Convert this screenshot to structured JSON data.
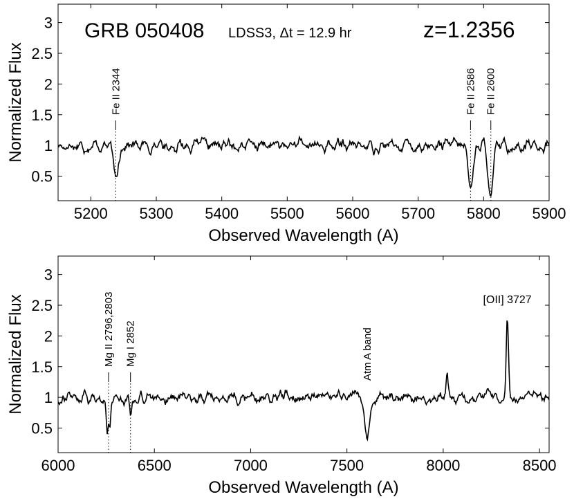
{
  "chart_data": [
    {
      "type": "line",
      "panel": "top",
      "title_main": "GRB 050408",
      "title_sub": "LDSS3,  Δt = 12.9 hr",
      "redshift_label": "z=1.2356",
      "xlabel": "Observed Wavelength  (A)",
      "ylabel": "Normalized Flux",
      "xlim": [
        5150,
        5900
      ],
      "ylim": [
        0.1,
        3.3
      ],
      "xticks": [
        5200,
        5300,
        5400,
        5500,
        5600,
        5700,
        5800,
        5900
      ],
      "yticks": [
        0.5,
        1,
        1.5,
        2,
        2.5,
        3
      ],
      "baseline": 1.0,
      "noise": 0.13,
      "absorption": [
        {
          "x": 5238,
          "depth": 0.55,
          "width": 3.5
        },
        {
          "x": 5780,
          "depth": 0.72,
          "width": 3.5
        },
        {
          "x": 5811,
          "depth": 0.92,
          "width": 3.5
        }
      ],
      "emission": [],
      "annotations": [
        {
          "label": "Fe II 2344",
          "x": 5238
        },
        {
          "label": "Fe II 2586",
          "x": 5780
        },
        {
          "label": "Fe II 2600",
          "x": 5811
        }
      ]
    },
    {
      "type": "line",
      "panel": "bottom",
      "xlabel": "Observed Wavelength  (A)",
      "ylabel": "Normalized Flux",
      "xlim": [
        6000,
        8550
      ],
      "ylim": [
        0.1,
        3.3
      ],
      "xticks": [
        6000,
        6500,
        7000,
        7500,
        8000,
        8500
      ],
      "yticks": [
        0.5,
        1,
        1.5,
        2,
        2.5,
        3
      ],
      "baseline": 1.0,
      "noise": 0.12,
      "absorption": [
        {
          "x": 6255,
          "depth": 0.55,
          "width": 5
        },
        {
          "x": 6268,
          "depth": 0.5,
          "width": 5
        },
        {
          "x": 6376,
          "depth": 0.35,
          "width": 5
        },
        {
          "x": 7605,
          "depth": 0.75,
          "width": 12
        }
      ],
      "emission": [
        {
          "x": 8333,
          "height": 1.35,
          "width": 6
        },
        {
          "x": 8020,
          "height": 0.35,
          "width": 5
        }
      ],
      "annotations": [
        {
          "label": "Mg II 2796,2803",
          "x": 6262
        },
        {
          "label": "Mg I 2852",
          "x": 6376
        },
        {
          "label": "Atm A band",
          "x": 7605
        },
        {
          "label": "[OII] 3727",
          "x": 8333
        }
      ]
    }
  ]
}
